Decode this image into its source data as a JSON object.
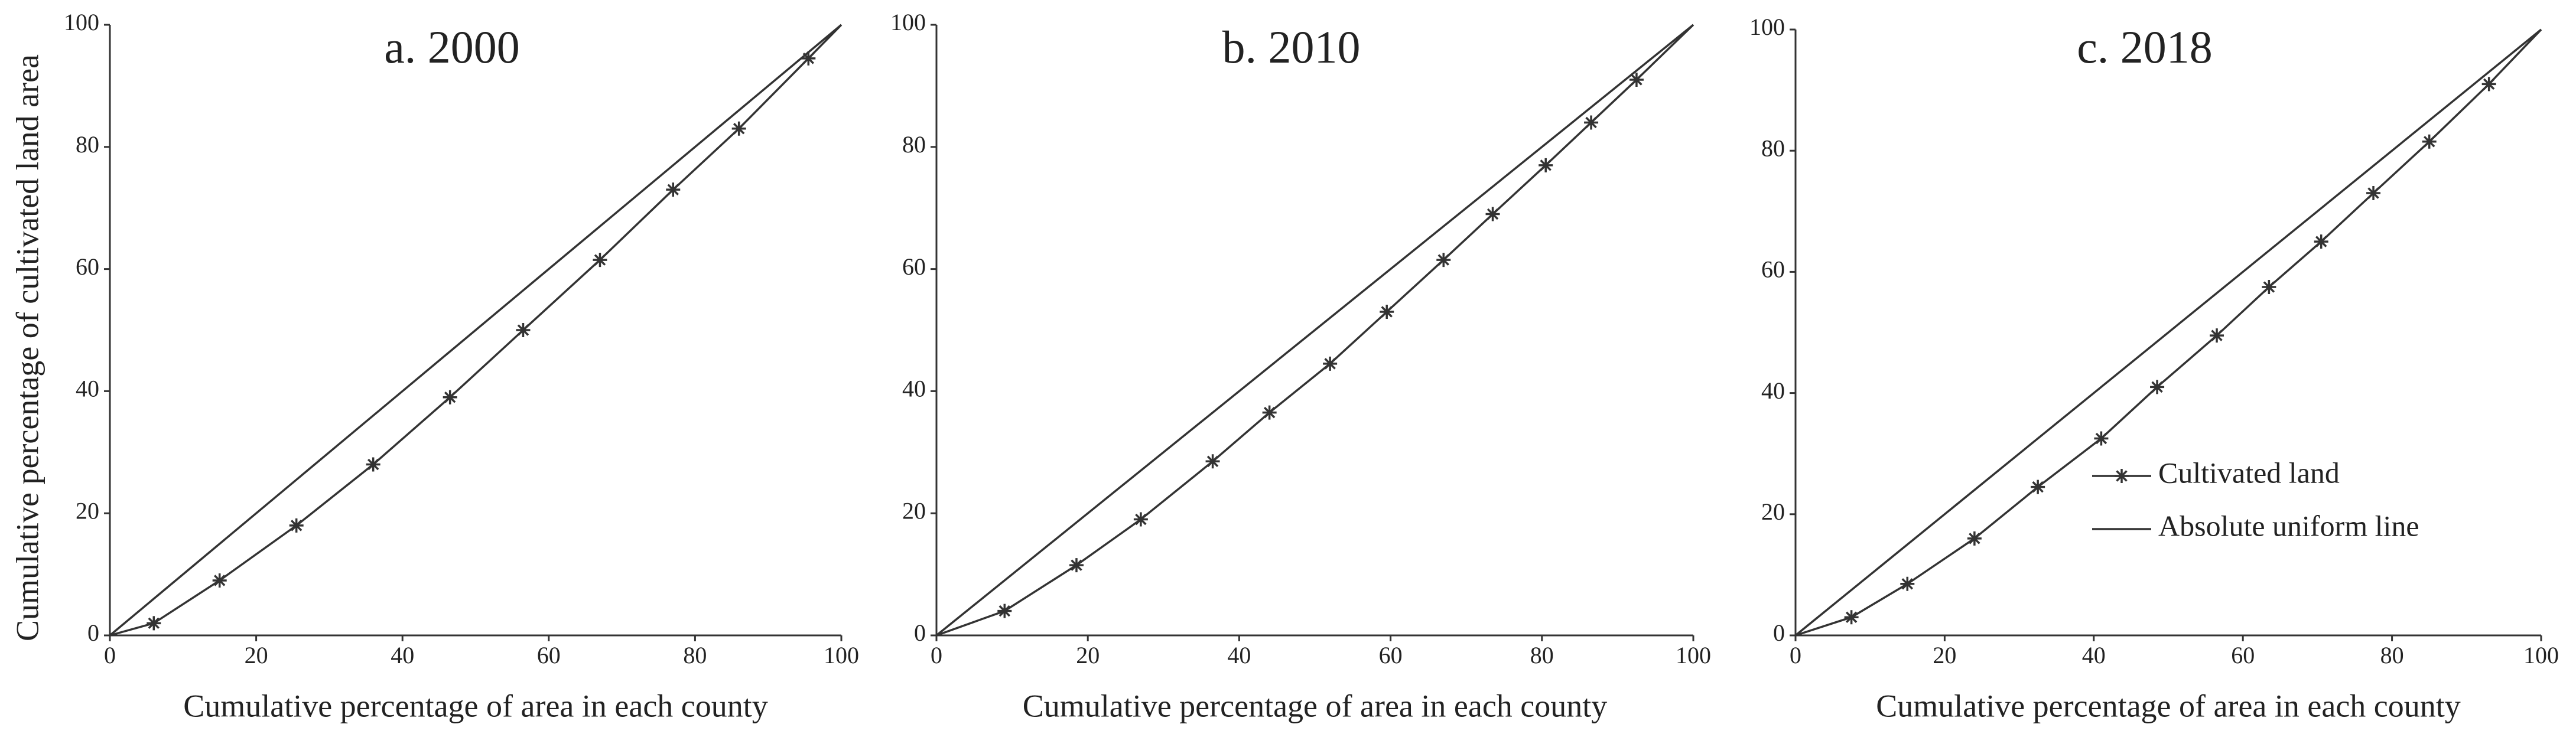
{
  "chart_data": [
    {
      "type": "line",
      "title": "a. 2000",
      "xlabel": "Cumulative percentage of area in each county",
      "ylabel": "Cumulative percentage of cultivated land area",
      "xlim": [
        0,
        100
      ],
      "ylim": [
        0,
        100
      ],
      "xticks": [
        0,
        20,
        40,
        60,
        80,
        100
      ],
      "yticks": [
        0,
        20,
        40,
        60,
        80,
        100
      ],
      "series": [
        {
          "color": "#333333",
          "marker": "star",
          "x": [
            0,
            6,
            15,
            25.5,
            36,
            46.5,
            56.5,
            67,
            77,
            86,
            95.5,
            100
          ],
          "values": [
            0,
            2,
            9,
            18,
            28,
            39,
            50,
            61.5,
            73,
            83,
            94.5,
            100
          ]
        },
        {
          "color": "#333333",
          "x": [
            0,
            100
          ],
          "values": [
            0,
            100
          ]
        }
      ]
    },
    {
      "type": "line",
      "title": "b. 2010",
      "xlabel": "Cumulative percentage of area in each county",
      "xlim": [
        0,
        100
      ],
      "ylim": [
        0,
        100
      ],
      "xticks": [
        0,
        20,
        40,
        60,
        80,
        100
      ],
      "yticks": [
        0,
        20,
        40,
        60,
        80,
        100
      ],
      "series": [
        {
          "color": "#333333",
          "marker": "star",
          "x": [
            0,
            9,
            18.5,
            27,
            36.5,
            44,
            52,
            59.5,
            67,
            73.5,
            80.5,
            86.5,
            92.5,
            100
          ],
          "values": [
            0,
            4,
            11.5,
            19,
            28.5,
            36.5,
            44.5,
            53,
            61.5,
            69,
            77,
            84,
            91,
            100
          ]
        },
        {
          "color": "#333333",
          "x": [
            0,
            100
          ],
          "values": [
            0,
            100
          ]
        }
      ]
    },
    {
      "type": "line",
      "title": "c. 2018",
      "xlabel": "Cumulative percentage of area in each county",
      "xlim": [
        0,
        100
      ],
      "ylim": [
        0,
        100
      ],
      "xticks": [
        0,
        20,
        40,
        60,
        80,
        100
      ],
      "yticks": [
        0,
        20,
        40,
        60,
        80,
        100
      ],
      "legend": "lower right",
      "series": [
        {
          "name": "Cultivated land",
          "color": "#333333",
          "marker": "star",
          "x": [
            0,
            7.5,
            15,
            24,
            32.5,
            41,
            48.5,
            56.5,
            63.5,
            70.5,
            77.5,
            85,
            93,
            100
          ],
          "values": [
            0,
            3,
            8.5,
            16,
            24.5,
            32.5,
            41,
            49.5,
            57.5,
            65,
            73,
            81.5,
            91,
            100
          ]
        },
        {
          "name": "Absolute uniform line",
          "color": "#333333",
          "x": [
            0,
            100
          ],
          "values": [
            0,
            100
          ]
        }
      ]
    }
  ]
}
